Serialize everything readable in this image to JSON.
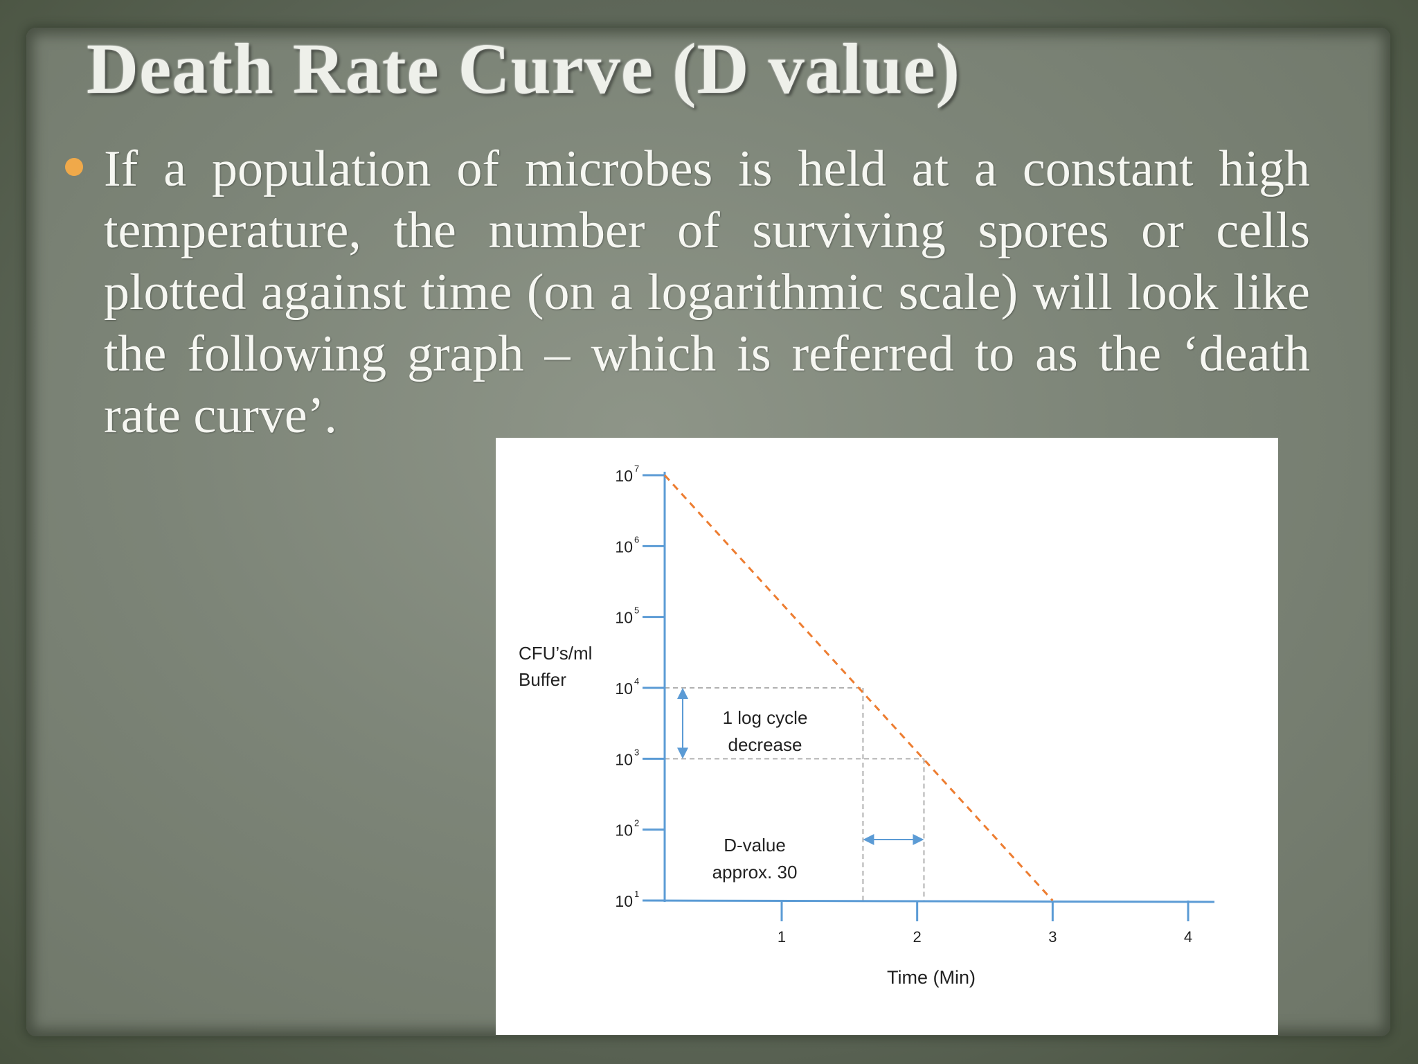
{
  "slide": {
    "title": "Death Rate Curve (D value)",
    "bullet_text": "If a population of microbes is held at a constant high temperature, the number of surviving spores or cells plotted against time (on a logarithmic scale) will look like the following graph – which is referred to as the ‘death rate curve’."
  },
  "colors": {
    "bullet": "#f0a94a",
    "axis": "#5b9bd5",
    "curve": "#ed7d31",
    "guide": "#b0b0b0"
  },
  "chart_data": {
    "type": "line",
    "y_scale": "log",
    "ylabel_line1": "CFU’s/ml",
    "ylabel_line2": "Buffer",
    "xlabel": "Time (Min)",
    "y_ticks": [
      {
        "exp": 7,
        "base": "10",
        "sup": "7"
      },
      {
        "exp": 6,
        "base": "10",
        "sup": "6"
      },
      {
        "exp": 5,
        "base": "10",
        "sup": "5"
      },
      {
        "exp": 4,
        "base": "10",
        "sup": "4"
      },
      {
        "exp": 3,
        "base": "10",
        "sup": "3"
      },
      {
        "exp": 2,
        "base": "10",
        "sup": "2"
      },
      {
        "exp": 1,
        "base": "10",
        "sup": "1"
      }
    ],
    "x_ticks": [
      {
        "x": 1,
        "label": "1"
      },
      {
        "x": 2,
        "label": "2"
      },
      {
        "x": 3,
        "label": "3"
      },
      {
        "x": 4,
        "label": "4"
      }
    ],
    "xlim": [
      -0.87,
      4.22
    ],
    "ylim": [
      1,
      10000000
    ],
    "series": [
      {
        "style": "dashed",
        "x": [
          -0.87,
          3.0
        ],
        "y": [
          10000000,
          10
        ]
      }
    ],
    "annotations": {
      "log_cycle_line1": "1 log cycle",
      "log_cycle_line2": "decrease",
      "dvalue_line1": "D-value",
      "dvalue_line2": "approx. 30",
      "guide_x": [
        1.6,
        2.05
      ],
      "guide_y": [
        10000,
        1000
      ]
    }
  }
}
